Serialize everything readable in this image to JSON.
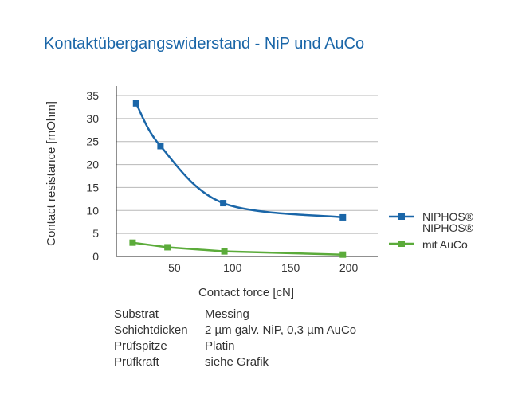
{
  "chart_data": {
    "type": "line",
    "title": "Kontaktübergangswiderstand - NiP und AuCo",
    "xlabel": "Contact force [cN]",
    "ylabel": "Contact resistance [mOhm]",
    "xlim": [
      0,
      225
    ],
    "ylim": [
      0,
      35
    ],
    "xticks": [
      50,
      100,
      150,
      200
    ],
    "yticks": [
      0,
      5,
      10,
      15,
      20,
      25,
      30,
      35
    ],
    "grid": true,
    "legend_position": "right",
    "series": [
      {
        "name": "NIPHOS®",
        "color": "#1a66a8",
        "marker": "square",
        "smooth": true,
        "x": [
          17,
          38,
          92,
          195
        ],
        "y": [
          33.3,
          24.0,
          11.6,
          8.5
        ]
      },
      {
        "name": "NIPHOS® mit AuCo",
        "name_lines": [
          "NIPHOS®",
          "mit AuCo"
        ],
        "color": "#5bab3a",
        "marker": "square",
        "smooth": false,
        "x": [
          14,
          44,
          93,
          195
        ],
        "y": [
          3.0,
          2.0,
          1.1,
          0.4
        ]
      }
    ]
  },
  "info": [
    {
      "key": "Substrat",
      "value": "Messing"
    },
    {
      "key": "Schichtdicken",
      "value": "2 µm galv. NiP, 0,3 µm AuCo"
    },
    {
      "key": "Prüfspitze",
      "value": "Platin"
    },
    {
      "key": "Prüfkraft",
      "value": "siehe Grafik"
    }
  ]
}
